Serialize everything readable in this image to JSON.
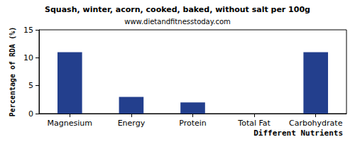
{
  "chart_data": {
    "type": "bar",
    "title": "Squash, winter, acorn, cooked, baked, without salt per 100g",
    "subtitle": "www.dietandfitnesstoday.com",
    "x_label": "Different Nutrients",
    "y_label": "Percentage of RDA (%)",
    "categories": [
      "Magnesium",
      "Energy",
      "Protein",
      "Total Fat",
      "Carbohydrate"
    ],
    "values": [
      11,
      3,
      2,
      0,
      11
    ],
    "color": "#233f8d",
    "ylim": [
      0,
      15
    ],
    "yticks": [
      0,
      5,
      10,
      15
    ],
    "grid": false
  }
}
